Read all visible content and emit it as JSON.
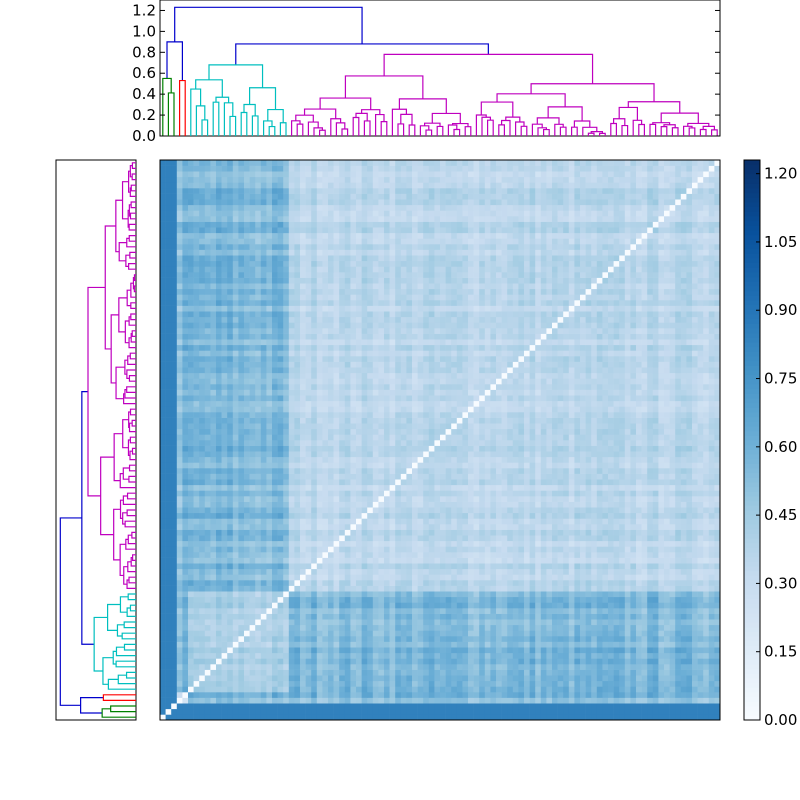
{
  "chart_data": [
    {
      "type": "dendrogram",
      "orientation": "top",
      "ylim": [
        0.0,
        1.3
      ],
      "ytick_labels": [
        "0.0",
        "0.2",
        "0.4",
        "0.6",
        "0.8",
        "1.0",
        "1.2"
      ],
      "yticks": [
        0.0,
        0.2,
        0.4,
        0.6,
        0.8,
        1.0,
        1.2
      ],
      "leaf_count": 100,
      "link_colors": {
        "above_threshold": "#0000cc",
        "cluster_1": "#008000",
        "cluster_2": "#ff0000",
        "cluster_3": "#00bfbf",
        "cluster_4": "#bf00bf"
      },
      "clusters": [
        {
          "color_key": "cluster_1",
          "leaves": [
            0,
            3
          ],
          "merge_height": 0.55
        },
        {
          "color_key": "cluster_2",
          "leaves": [
            3,
            5
          ],
          "merge_height": 0.53
        },
        {
          "color_key": "cluster_3",
          "leaves": [
            5,
            23
          ],
          "merge_height": 0.68
        },
        {
          "color_key": "cluster_4",
          "leaves": [
            23,
            100
          ],
          "merge_height": 0.78
        }
      ],
      "top_links": [
        {
          "children": [
            "cluster_1",
            "cluster_2"
          ],
          "height": 0.9
        },
        {
          "children": [
            "cluster_3",
            "cluster_4"
          ],
          "height": 0.88
        },
        {
          "children": [
            "left_group",
            "right_group"
          ],
          "height": 1.23
        }
      ]
    },
    {
      "type": "dendrogram",
      "orientation": "left",
      "mirrors": "top dendrogram (same tree, leaves ordered bottom-to-top)"
    },
    {
      "type": "heatmap",
      "description_values": "symmetric distance matrix, zero diagonal",
      "size": 100,
      "value_range": [
        0.0,
        1.23
      ],
      "colormap": "Blues",
      "colorbar_ticks": [
        0.0,
        0.15,
        0.3,
        0.45,
        0.6,
        0.75,
        0.9,
        1.05,
        1.2
      ],
      "colorbar_tick_labels": [
        "0.00",
        "0.15",
        "0.30",
        "0.45",
        "0.60",
        "0.75",
        "0.90",
        "1.05",
        "1.20"
      ],
      "within_cluster_level": [
        0.1,
        0.12,
        0.18,
        0.16
      ],
      "between_cluster_level": 0.55
    }
  ]
}
